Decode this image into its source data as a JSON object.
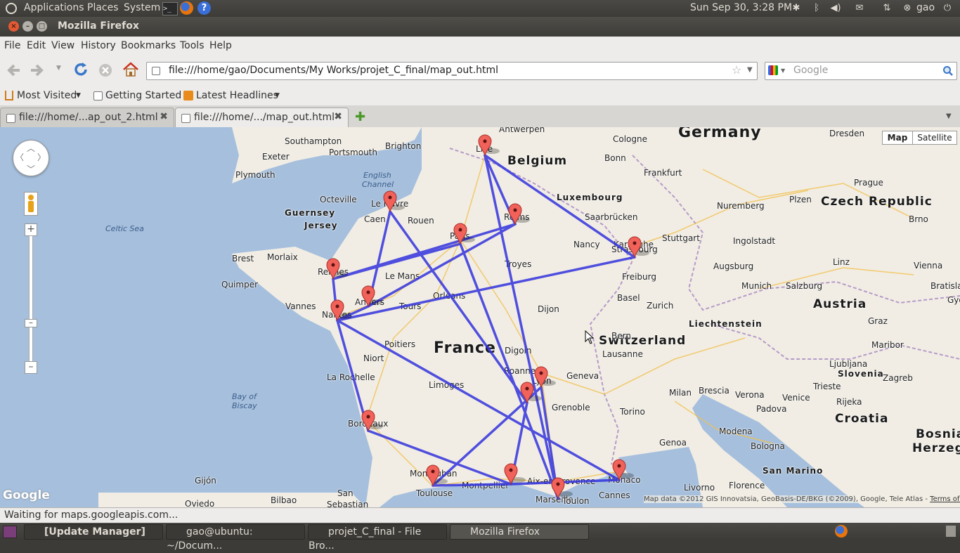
{
  "top_panel": {
    "menus": [
      "Applications",
      "Places",
      "System"
    ],
    "clock": "Sun Sep 30,  3:28 PM",
    "user": "gao"
  },
  "window": {
    "title": "Mozilla Firefox"
  },
  "menubar": [
    "File",
    "Edit",
    "View",
    "History",
    "Bookmarks",
    "Tools",
    "Help"
  ],
  "navbar": {
    "url": "file:///home/gao/Documents/My Works/projet_C_final/map_out.html",
    "search_placeholder": "Google"
  },
  "bookmarks": [
    {
      "label": "Most Visited",
      "dropdown": true
    },
    {
      "label": "Getting Started",
      "dropdown": false
    },
    {
      "label": "Latest Headlines",
      "dropdown": true
    }
  ],
  "tabs": [
    {
      "label": "file:///home/...ap_out_2.html",
      "active": false
    },
    {
      "label": "file:///home/.../map_out.html",
      "active": true
    }
  ],
  "map": {
    "type_buttons": [
      "Map",
      "Satellite"
    ],
    "selected_type": "Map",
    "labels": {
      "countries": [
        "Germany",
        "Belgium",
        "Luxembourg",
        "Czech Republic",
        "Austria",
        "Switzerland",
        "Liechtenstein",
        "France",
        "Slovenia",
        "Croatia",
        "Bosnia",
        "Herzeg",
        "San Marino",
        "Guernsey",
        "Jersey"
      ],
      "waters": [
        "Celtic Sea",
        "English",
        "Channel",
        "Bay of",
        "Biscay"
      ],
      "cities": [
        "Antwerpen",
        "Southampton",
        "Portsmouth",
        "Brighton",
        "Exeter",
        "Plymouth",
        "Cologne",
        "Bonn",
        "Dresden",
        "Frankfurt",
        "Prague",
        "Nuremberg",
        "Plzen",
        "Brno",
        "Karlsruhe",
        "Stuttgart",
        "Ingolstadt",
        "Augsburg",
        "Munich",
        "Salzburg",
        "Linz",
        "Vienna",
        "Bratislava",
        "Gyor",
        "Graz",
        "Maribor",
        "Zagreb",
        "Trieste",
        "Rijeka",
        "Ljubljana",
        "Saarbrücken",
        "Nancy",
        "Freiburg",
        "Basel",
        "Zurich",
        "Bern",
        "Lausanne",
        "Geneva",
        "Grenoble",
        "Torino",
        "Milan",
        "Brescia",
        "Verona",
        "Venice",
        "Padova",
        "Modena",
        "Bologna",
        "Genoa",
        "Livorno",
        "Florence",
        "Cannes",
        "Le Havre",
        "Caen",
        "Rouen",
        "Octeville",
        "Brest",
        "Morlaix",
        "Quimper",
        "Vannes",
        "Rennes",
        "Le Mans",
        "Angers",
        "Tours",
        "Orleans",
        "Nantes",
        "Troyes",
        "Dijon",
        "Poitiers",
        "Niort",
        "La Rochelle",
        "Limoges",
        "Digoin",
        "Roanne",
        "Lyon",
        "Bordeaux",
        "Toulouse",
        "Montauban",
        "Montpellier",
        "Aix-en-Provence",
        "Marseille",
        "Toulon",
        "Monaco",
        "Gijón",
        "Oviedo",
        "Bilbao",
        "San",
        "Sebastian",
        "Reims",
        "Paris",
        "Lille",
        "Strasbourg"
      ]
    },
    "markers": [
      "Lille",
      "Le Havre",
      "Reims",
      "Paris",
      "Strasbourg",
      "Rennes",
      "Angers",
      "Nantes",
      "Lyon",
      "Valence",
      "Bordeaux",
      "Toulouse",
      "Montpellier",
      "Marseille",
      "Monaco"
    ],
    "route_color": "#3333dd",
    "attribution": "Map data ©2012 GIS Innovatsia, GeoBasis-DE/BKG (©2009), Google, Tele Atlas -",
    "terms": "Terms of Use",
    "logo": "Google"
  },
  "status": "Waiting for maps.googleapis.com...",
  "taskbar": [
    "[Update Manager]",
    "gao@ubuntu: ~/Docum...",
    "projet_C_final - File Bro...",
    "Mozilla Firefox"
  ]
}
